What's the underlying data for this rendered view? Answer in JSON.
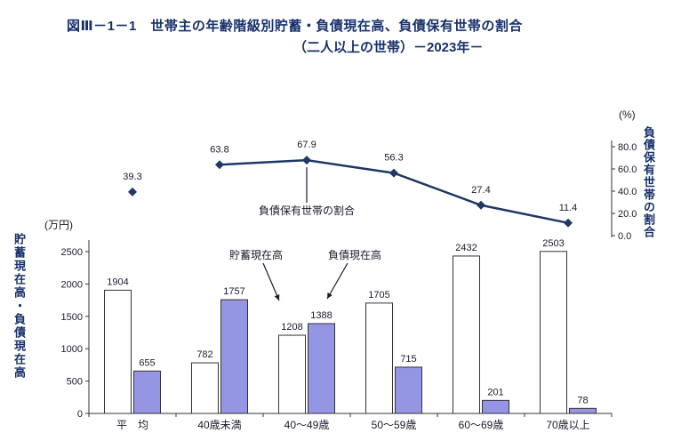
{
  "title": {
    "line1": "図Ⅲ－1－1　世帯主の年齢階級別貯蓄・負債現在高、負債保有世帯の割合",
    "line2": "（二人以上の世帯）－2023年－"
  },
  "chart_data": {
    "type": "bar",
    "subtype": "grouped-bar-with-line-dual-axis",
    "categories": [
      "平　均",
      "40歳未満",
      "40～49歳",
      "50～59歳",
      "60～69歳",
      "70歳以上"
    ],
    "series": [
      {
        "name": "貯蓄現在高",
        "type": "bar",
        "axis": "left",
        "color": "#ffffff",
        "values": [
          1904,
          782,
          1208,
          1705,
          2432,
          2503
        ]
      },
      {
        "name": "負債現在高",
        "type": "bar",
        "axis": "left",
        "color": "#9496e3",
        "values": [
          655,
          1757,
          1388,
          715,
          201,
          78
        ]
      },
      {
        "name": "負債保有世帯の割合",
        "type": "line",
        "axis": "right",
        "color": "#1f3864",
        "values": [
          39.3,
          63.8,
          67.9,
          56.3,
          27.4,
          11.4
        ]
      }
    ],
    "left_axis": {
      "unit": "(万円)",
      "label": "貯蓄現在高・負債現在高",
      "ticks": [
        0,
        500,
        1000,
        1500,
        2000,
        2500
      ],
      "min": 0,
      "max": 2500
    },
    "right_axis": {
      "unit": "(%)",
      "label": "負債保有世帯の割合",
      "ticks": [
        0,
        20,
        40,
        60,
        80
      ],
      "min": 0,
      "max": 80
    },
    "annotations": [
      {
        "text": "負債保有世帯の割合",
        "points_to": "line-series"
      },
      {
        "text": "貯蓄現在高",
        "points_to": "savings-bar-40-49"
      },
      {
        "text": "負債現在高",
        "points_to": "liabilities-bar-40-49"
      }
    ],
    "grid": false,
    "legend_position": "none"
  },
  "colors": {
    "title": "#17316b",
    "axis": "#333333",
    "bar_savings_fill": "#ffffff",
    "bar_liabilities_fill": "#9496e3",
    "line": "#1f3864",
    "text": "#1a1a2e"
  }
}
